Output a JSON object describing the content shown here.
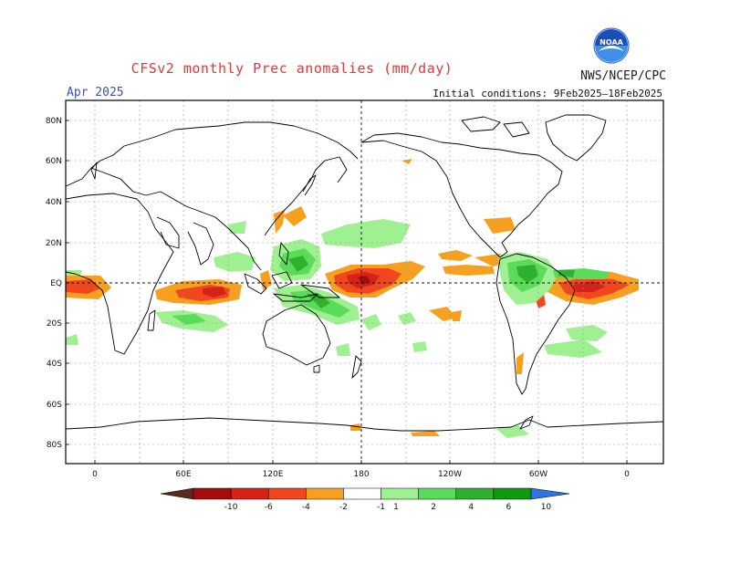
{
  "header": {
    "title": "CFSv2 monthly Prec anomalies (mm/day)",
    "agency": "NWS/NCEP/CPC",
    "month": "Apr 2025",
    "initial_conditions": "Initial conditions: 9Feb2025–18Feb2025",
    "logo_text": "NOAA"
  },
  "axes": {
    "lat_labels": [
      "80N",
      "60N",
      "40N",
      "20N",
      "EQ",
      "20S",
      "40S",
      "60S",
      "80S"
    ],
    "lon_labels": [
      "0",
      "60E",
      "120E",
      "180",
      "120W",
      "60W",
      "0"
    ]
  },
  "colorbar": {
    "labels": [
      "-10",
      "-6",
      "-4",
      "-2",
      "-1",
      "1",
      "2",
      "4",
      "6",
      "10"
    ],
    "colors": [
      "#5a2a1c",
      "#a50d0d",
      "#d62319",
      "#f2461e",
      "#f7a020",
      "#ffffff",
      "#9ff090",
      "#5adc5a",
      "#2fb12f",
      "#109a10",
      "#2f74e0"
    ]
  },
  "anomaly_colors": {
    "dry_light": "#f7a020",
    "dry_mid": "#f2461e",
    "dry_strong": "#d62319",
    "dry_extreme": "#a50d0d",
    "wet_light": "#9ff090",
    "wet_mid": "#5adc5a",
    "wet_strong": "#2fb12f"
  }
}
